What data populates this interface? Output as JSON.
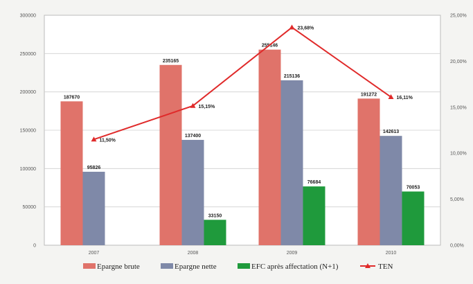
{
  "chart_data": {
    "type": "bar",
    "title": "",
    "xlabel": "",
    "ylabel": "",
    "categories": [
      "2007",
      "2008",
      "2009",
      "2010"
    ],
    "ylim": [
      0,
      300000
    ],
    "y2lim": [
      0,
      25
    ],
    "yticks": [
      "0",
      "50000",
      "100000",
      "150000",
      "200000",
      "250000",
      "300000"
    ],
    "y2ticks": [
      "0,00%",
      "5,00%",
      "10,00%",
      "15,00%",
      "20,00%",
      "25,00%"
    ],
    "grid": true,
    "legend_position": "bottom",
    "series": [
      {
        "name": "Epargne brute",
        "values": [
          187670,
          235165,
          255146,
          191272
        ],
        "labels": [
          "187670",
          "235165",
          "255146",
          "191272"
        ],
        "color": "#e0736a"
      },
      {
        "name": "Epargne nette",
        "values": [
          95826,
          137400,
          215136,
          142613
        ],
        "labels": [
          "95826",
          "137400",
          "215136",
          "142613"
        ],
        "color": "#7f89a8"
      },
      {
        "name": "EFC après affectation (N+1)",
        "values": [
          null,
          33150,
          76684,
          70053
        ],
        "labels": [
          "",
          "33150",
          "76684",
          "70053"
        ],
        "color": "#1f9a3c"
      },
      {
        "name": "TEN",
        "axis": "right",
        "type": "line",
        "values": [
          11.5,
          15.15,
          23.68,
          16.11
        ],
        "labels": [
          "11,50%",
          "15,15%",
          "23,68%",
          "16,11%"
        ],
        "color": "#e02a2a"
      }
    ]
  }
}
